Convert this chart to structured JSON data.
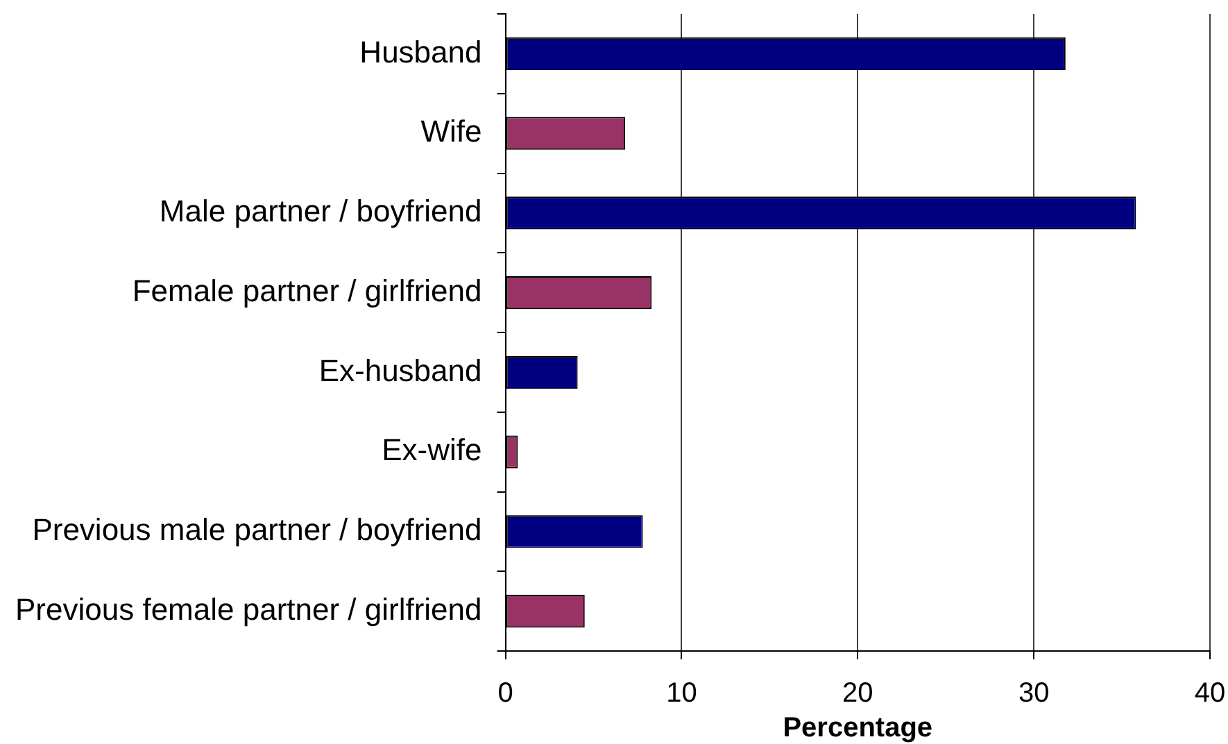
{
  "chart_data": {
    "type": "bar",
    "orientation": "horizontal",
    "categories": [
      "Husband",
      "Wife",
      "Male partner / boyfriend",
      "Female partner / girlfriend",
      "Ex-husband",
      "Ex-wife",
      "Previous male partner / boyfriend",
      "Previous female partner / girlfriend"
    ],
    "values": [
      31.8,
      6.8,
      35.8,
      8.3,
      4.1,
      0.7,
      7.8,
      4.5
    ],
    "colors": [
      "#000080",
      "#993366",
      "#000080",
      "#993366",
      "#000080",
      "#993366",
      "#000080",
      "#993366"
    ],
    "xlabel": "Percentage",
    "xlim": [
      0,
      40
    ],
    "xticks": [
      0,
      10,
      20,
      30,
      40
    ],
    "grid": "x"
  }
}
